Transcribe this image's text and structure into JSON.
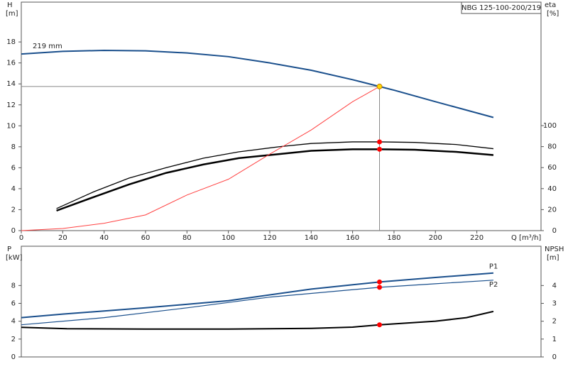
{
  "chart_data": [
    {
      "type": "line",
      "title": "NBG 125-100-200/219",
      "y_label": "H",
      "y_unit": "[m]",
      "y2_label": "eta",
      "y2_unit": "[%]",
      "x_label": "Q [m³/h]",
      "xlim": [
        0,
        251
      ],
      "ylim": [
        0,
        21.8
      ],
      "y2lim": [
        0,
        217.6
      ],
      "xticks": [
        0,
        20,
        40,
        60,
        80,
        100,
        120,
        140,
        160,
        180,
        200,
        220
      ],
      "yticks": [
        0,
        2,
        4,
        6,
        8,
        10,
        12,
        14,
        16,
        18
      ],
      "y2ticks": [
        0,
        20,
        40,
        60,
        80,
        100
      ],
      "series": [
        {
          "name": "219 mm",
          "color": "#1a4f8c",
          "width": 2,
          "x": [
            0,
            20,
            40,
            60,
            80,
            100,
            120,
            140,
            160,
            173,
            180,
            200,
            228
          ],
          "values": [
            16.85,
            17.1,
            17.2,
            17.15,
            16.95,
            16.6,
            16.0,
            15.3,
            14.4,
            13.75,
            13.4,
            12.3,
            10.8
          ]
        },
        {
          "color": "#000000",
          "width": 1.3,
          "axis": "y2",
          "x": [
            17,
            35,
            52,
            70,
            88,
            105,
            125,
            140,
            160,
            173,
            190,
            210,
            228
          ],
          "values": [
            21,
            37,
            50,
            60,
            69,
            75,
            80,
            83,
            84.5,
            84.5,
            84,
            82,
            78
          ]
        },
        {
          "color": "#000000",
          "width": 2.5,
          "axis": "y2",
          "x": [
            17,
            35,
            52,
            70,
            88,
            105,
            125,
            140,
            160,
            173,
            190,
            210,
            228
          ],
          "values": [
            19,
            32,
            44,
            55,
            63,
            69,
            73,
            76,
            77.5,
            77.5,
            77,
            75,
            72
          ]
        },
        {
          "color": "#ff4040",
          "width": 1,
          "x": [
            0,
            20,
            40,
            60,
            80,
            100,
            120,
            140,
            160,
            173
          ],
          "values": [
            0,
            0.2,
            0.7,
            1.5,
            3.4,
            4.9,
            7.3,
            9.6,
            12.3,
            13.75
          ]
        }
      ],
      "points": [
        {
          "x": 173,
          "y": 13.75,
          "color": "#ffd700"
        },
        {
          "x": 173,
          "y": 84.5,
          "axis": "y2",
          "color": "#ff0000"
        },
        {
          "x": 173,
          "y": 77.5,
          "axis": "y2",
          "color": "#ff0000"
        }
      ]
    },
    {
      "type": "line",
      "y_label": "P",
      "y_unit": "[kW]",
      "y2_label": "NPSH",
      "y2_unit": "[m]",
      "xlim": [
        0,
        251
      ],
      "ylim": [
        0,
        12.4
      ],
      "y2lim": [
        0,
        6.2
      ],
      "yticks": [
        0,
        2,
        4,
        6,
        8
      ],
      "y2ticks": [
        0,
        1,
        2,
        3,
        4
      ],
      "series": [
        {
          "name": "P1",
          "color": "#1a4f8c",
          "width": 2,
          "x": [
            0,
            20,
            60,
            100,
            140,
            173,
            200,
            228
          ],
          "values": [
            4.4,
            4.8,
            5.5,
            6.3,
            7.6,
            8.4,
            8.9,
            9.4
          ]
        },
        {
          "name": "P2",
          "color": "#1a4f8c",
          "width": 1.2,
          "x": [
            0,
            40,
            80,
            120,
            173,
            200,
            228
          ],
          "values": [
            3.6,
            4.4,
            5.5,
            6.7,
            7.8,
            8.2,
            8.6
          ]
        },
        {
          "color": "#000000",
          "width": 2,
          "axis": "y2",
          "x": [
            0,
            22,
            60,
            100,
            140,
            160,
            173,
            200,
            215,
            228
          ],
          "values": [
            1.66,
            1.58,
            1.56,
            1.56,
            1.6,
            1.67,
            1.8,
            2.0,
            2.2,
            2.55
          ]
        }
      ],
      "points": [
        {
          "x": 173,
          "y": 8.4,
          "color": "#ff0000"
        },
        {
          "x": 173,
          "y": 7.8,
          "color": "#ff0000"
        },
        {
          "x": 173,
          "y": 1.8,
          "axis": "y2",
          "color": "#ff0000"
        }
      ]
    }
  ]
}
